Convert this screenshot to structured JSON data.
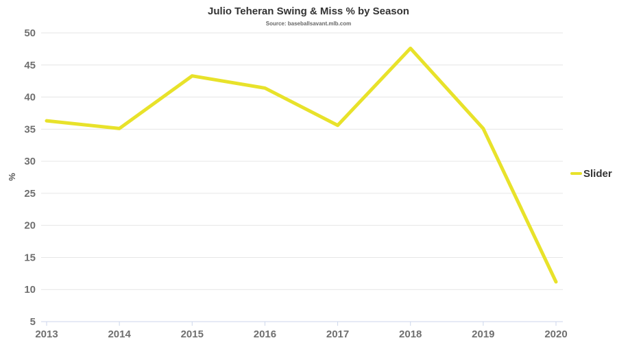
{
  "chart_data": {
    "type": "line",
    "title": "Julio Teheran Swing & Miss % by Season",
    "subtitle": "Source: baseballsavant.mlb.com",
    "xlabel": "",
    "ylabel": "%",
    "x": [
      "2013",
      "2014",
      "2015",
      "2016",
      "2017",
      "2018",
      "2019",
      "2020"
    ],
    "series": [
      {
        "name": "Slider",
        "color": "#e8e22a",
        "values": [
          36.3,
          35.1,
          43.3,
          41.4,
          35.6,
          47.6,
          35.1,
          11.2
        ]
      }
    ],
    "ylim": [
      5,
      50
    ],
    "yticks": [
      5,
      10,
      15,
      20,
      25,
      30,
      35,
      40,
      45,
      50
    ],
    "grid": true,
    "legend": "right"
  }
}
